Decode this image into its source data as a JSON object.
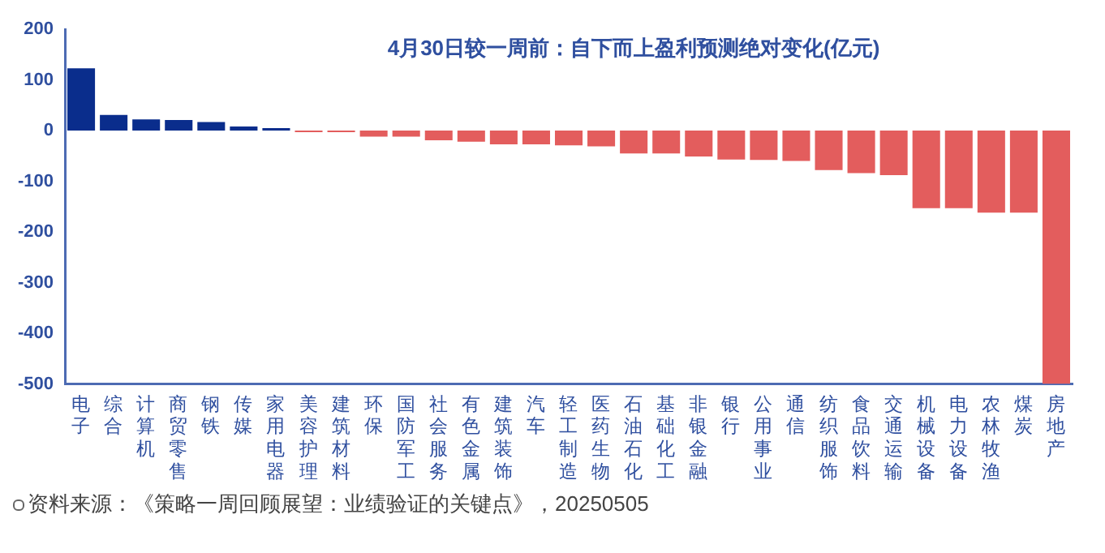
{
  "chart_data": {
    "type": "bar",
    "title": "4月30日较一周前：自下而上盈利预测绝对变化(亿元)",
    "categories": [
      "电子",
      "综合",
      "计算机",
      "商贸零售",
      "钢铁",
      "传媒",
      "家用电器",
      "美容护理",
      "建筑材料",
      "环保",
      "国防军工",
      "社会服务",
      "有色金属",
      "建筑装饰",
      "汽车",
      "轻工制造",
      "医药生物",
      "石油石化",
      "基础化工",
      "非银金融",
      "银行",
      "公用事业",
      "通信",
      "纺织服饰",
      "食品饮料",
      "交通运输",
      "机械设备",
      "电力设备",
      "农林牧渔",
      "煤炭",
      "房地产"
    ],
    "values": [
      123,
      31,
      22,
      21,
      17,
      8,
      5,
      -3,
      -3,
      -12,
      -12,
      -19,
      -22,
      -27,
      -27,
      -29,
      -31,
      -45,
      -45,
      -51,
      -57,
      -58,
      -60,
      -78,
      -84,
      -88,
      -153,
      -153,
      -162,
      -162,
      -500
    ],
    "colors": [
      "#0a2d8c",
      "#0a2d8c",
      "#0a2d8c",
      "#0a2d8c",
      "#0a2d8c",
      "#0a2d8c",
      "#0a2d8c",
      "#e35d5d",
      "#e35d5d",
      "#e35d5d",
      "#e35d5d",
      "#e35d5d",
      "#e35d5d",
      "#e35d5d",
      "#e35d5d",
      "#e35d5d",
      "#e35d5d",
      "#e35d5d",
      "#e35d5d",
      "#e35d5d",
      "#e35d5d",
      "#e35d5d",
      "#e35d5d",
      "#e35d5d",
      "#e35d5d",
      "#e35d5d",
      "#e35d5d",
      "#e35d5d",
      "#e35d5d",
      "#e35d5d",
      "#e35d5d"
    ],
    "ylim": [
      -500,
      200
    ],
    "yticks": [
      -500,
      -400,
      -300,
      -200,
      -100,
      0,
      100,
      200
    ],
    "grid": false,
    "legend": false,
    "annotations": [
      "资料来源：《策略一周回顾展望：业绩验证的关键点》，20250505"
    ]
  }
}
